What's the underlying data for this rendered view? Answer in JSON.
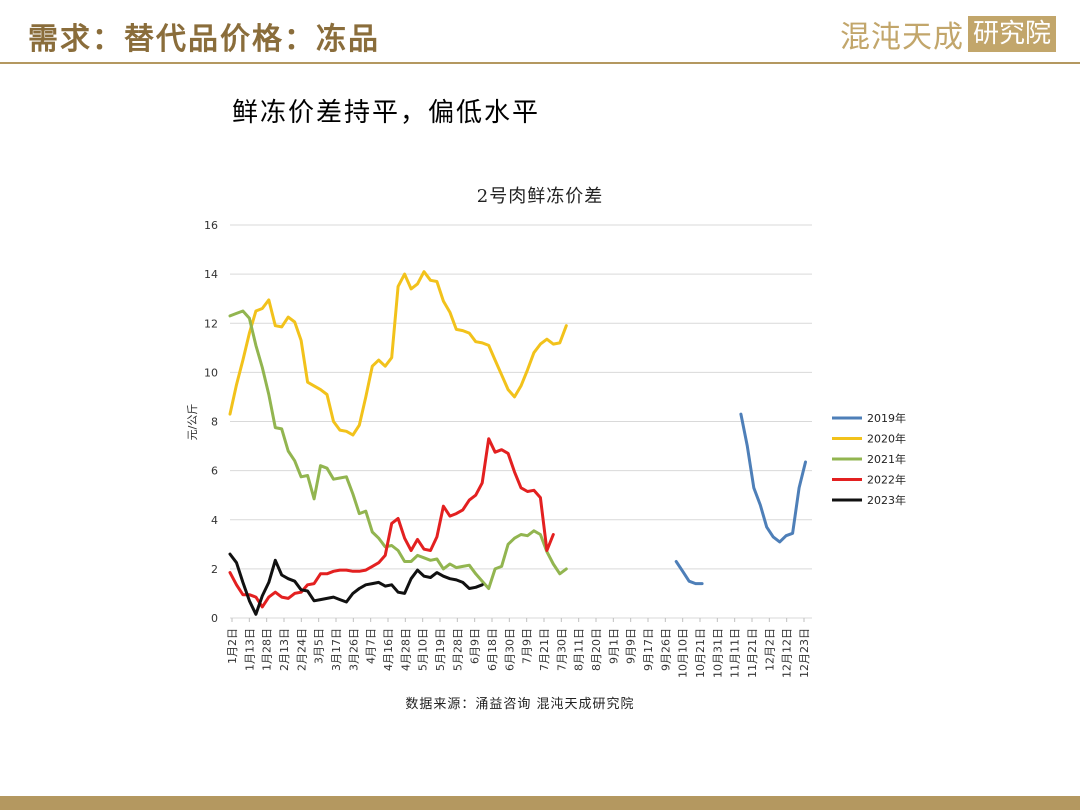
{
  "header": {
    "title": "需求：替代品价格：冻品",
    "logo_script": "混沌天成",
    "logo_box": "研究院"
  },
  "subtitle": "鲜冻价差持平，偏低水平",
  "source": "数据来源：涌益咨询 混沌天成研究院",
  "colors": {
    "accent": "#b49860",
    "title": "#8a6d3b"
  },
  "chart_data": {
    "type": "line",
    "title": "2号肉鲜冻价差",
    "ylabel": "元/公斤",
    "xlabel": "",
    "ylim": [
      0,
      16
    ],
    "yticks": [
      0,
      2,
      4,
      6,
      8,
      10,
      12,
      14,
      16
    ],
    "grid": true,
    "legend_position": "right",
    "x_tick_labels": [
      "1月2日",
      "1月13日",
      "1月28日",
      "2月13日",
      "2月24日",
      "3月5日",
      "3月17日",
      "3月26日",
      "4月7日",
      "4月16日",
      "4月28日",
      "5月10日",
      "5月19日",
      "5月28日",
      "6月9日",
      "6月18日",
      "6月30日",
      "7月9日",
      "7月21日",
      "7月30日",
      "8月11日",
      "8月20日",
      "9月1日",
      "9月9日",
      "9月17日",
      "9月26日",
      "10月10日",
      "10月21日",
      "10月31日",
      "11月11日",
      "11月21日",
      "12月2日",
      "12月12日",
      "12月23日"
    ],
    "series": [
      {
        "name": "2019年",
        "color": "#4e7fb8",
        "values": [
          null,
          null,
          null,
          null,
          null,
          null,
          null,
          null,
          null,
          null,
          null,
          null,
          null,
          null,
          null,
          null,
          null,
          null,
          null,
          null,
          null,
          null,
          null,
          null,
          null,
          null,
          null,
          null,
          null,
          null,
          null,
          null,
          null,
          null,
          null,
          null,
          null,
          null,
          null,
          null,
          null,
          null,
          null,
          null,
          null,
          null,
          null,
          null,
          null,
          null,
          null,
          null,
          null,
          null,
          null,
          null,
          null,
          null,
          null,
          null,
          null,
          null,
          null,
          null,
          null,
          null,
          null,
          null,
          null,
          2.3,
          1.9,
          1.5,
          1.4,
          1.4,
          null,
          null,
          null,
          null,
          null,
          8.3,
          7.0,
          5.3,
          4.6,
          3.7,
          3.3,
          3.1,
          3.35,
          3.45,
          5.3,
          6.35,
          null
        ]
      },
      {
        "name": "2020年",
        "color": "#f2c21b",
        "values": [
          8.3,
          9.5,
          10.5,
          11.6,
          12.5,
          12.6,
          12.95,
          11.9,
          11.85,
          12.25,
          12.05,
          11.3,
          9.6,
          9.45,
          9.3,
          9.1,
          8.0,
          7.65,
          7.6,
          7.45,
          7.85,
          9.0,
          10.25,
          10.5,
          10.25,
          10.6,
          13.5,
          14.0,
          13.4,
          13.6,
          14.1,
          13.75,
          13.7,
          12.9,
          12.45,
          11.75,
          11.7,
          11.6,
          11.25,
          11.2,
          11.1,
          10.5,
          9.9,
          9.3,
          9.0,
          9.45,
          10.1,
          10.8,
          11.15,
          11.35,
          11.15,
          11.2,
          11.9
        ]
      },
      {
        "name": "2021年",
        "color": "#92b550",
        "values": [
          12.3,
          12.4,
          12.5,
          12.2,
          11.1,
          10.2,
          9.1,
          7.75,
          7.7,
          6.8,
          6.4,
          5.75,
          5.8,
          4.85,
          6.2,
          6.1,
          5.65,
          5.7,
          5.75,
          5.05,
          4.25,
          4.35,
          3.5,
          3.25,
          2.9,
          2.95,
          2.75,
          2.3,
          2.3,
          2.55,
          2.45,
          2.35,
          2.4,
          2.0,
          2.2,
          2.05,
          2.1,
          2.15,
          1.8,
          1.5,
          1.2,
          2.0,
          2.1,
          3.0,
          3.25,
          3.4,
          3.35,
          3.55,
          3.4,
          2.7,
          2.2,
          1.8,
          2.0
        ]
      },
      {
        "name": "2022年",
        "color": "#e32020",
        "values": [
          1.85,
          1.35,
          0.95,
          0.95,
          0.85,
          0.45,
          0.85,
          1.05,
          0.85,
          0.8,
          1.0,
          1.05,
          1.35,
          1.4,
          1.8,
          1.8,
          1.9,
          1.95,
          1.95,
          1.9,
          1.9,
          1.95,
          2.1,
          2.25,
          2.55,
          3.85,
          4.05,
          3.25,
          2.75,
          3.2,
          2.8,
          2.75,
          3.3,
          4.55,
          4.15,
          4.25,
          4.4,
          4.8,
          5.0,
          5.5,
          7.3,
          6.75,
          6.85,
          6.7,
          5.95,
          5.3,
          5.15,
          5.2,
          4.9,
          2.75,
          3.4
        ]
      },
      {
        "name": "2023年",
        "color": "#111111",
        "values": [
          2.6,
          2.25,
          1.45,
          0.7,
          0.15,
          0.9,
          1.45,
          2.35,
          1.75,
          1.6,
          1.5,
          1.15,
          1.1,
          0.7,
          0.75,
          0.8,
          0.85,
          0.75,
          0.65,
          1.0,
          1.2,
          1.35,
          1.4,
          1.45,
          1.3,
          1.35,
          1.05,
          1.0,
          1.6,
          1.95,
          1.7,
          1.65,
          1.85,
          1.7,
          1.6,
          1.55,
          1.45,
          1.2,
          1.25,
          1.35
        ]
      }
    ]
  }
}
